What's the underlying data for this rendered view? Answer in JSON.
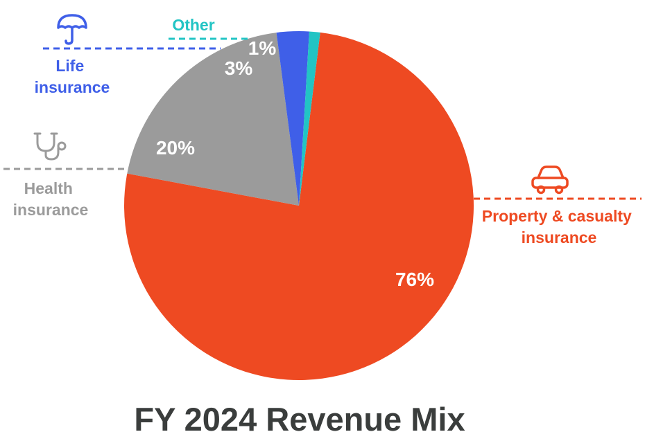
{
  "chart_data": {
    "type": "pie",
    "title": "FY 2024 Revenue Mix",
    "slices": [
      {
        "label": "Property & casualty insurance",
        "label_lines": [
          "Property & casualty",
          "insurance"
        ],
        "value": 76,
        "display": "76%",
        "color": "#ee4a22",
        "icon": "car-icon"
      },
      {
        "label": "Health insurance",
        "label_lines": [
          "Health",
          "insurance"
        ],
        "value": 20,
        "display": "20%",
        "color": "#9b9b9b",
        "icon": "stethoscope-icon"
      },
      {
        "label": "Life insurance",
        "label_lines": [
          "Life",
          "insurance"
        ],
        "value": 3,
        "display": "3%",
        "color": "#3f5fe8",
        "icon": "umbrella-icon"
      },
      {
        "label": "Other",
        "label_lines": [
          "Other"
        ],
        "value": 1,
        "display": "1%",
        "color": "#22c4c4",
        "icon": null
      }
    ]
  },
  "colors": {
    "title": "#3a3d3c",
    "value_label": "#ffffff",
    "health_text": "#9b9b9b"
  }
}
